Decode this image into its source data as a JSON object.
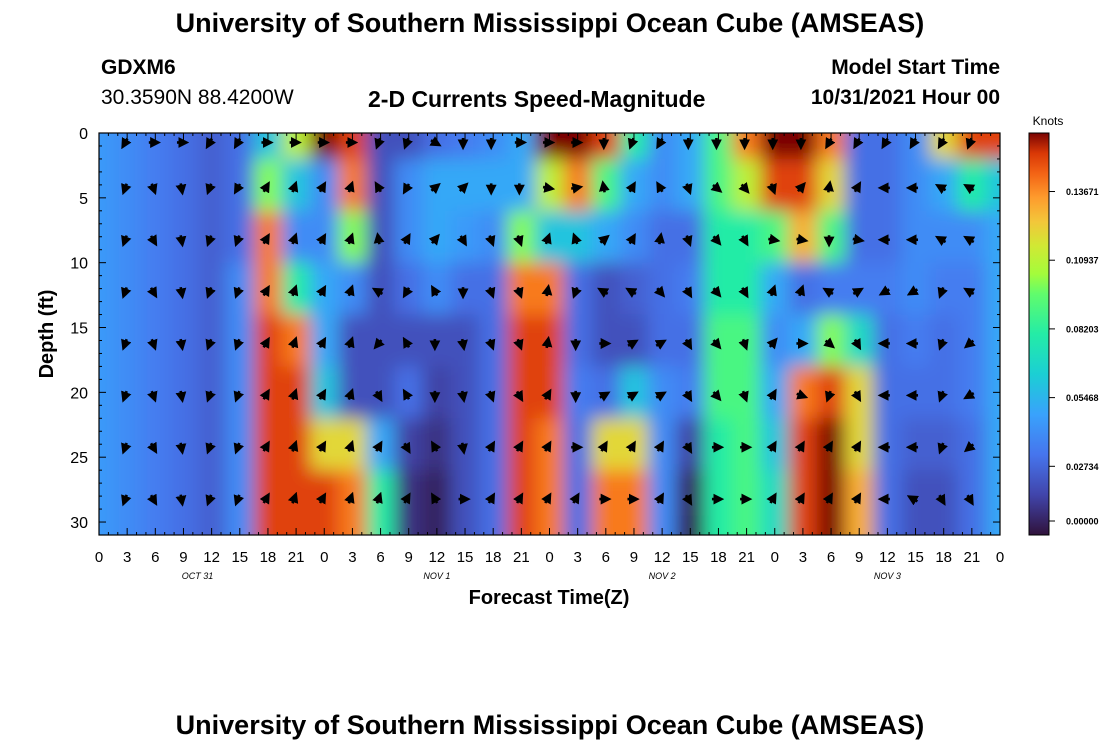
{
  "header": {
    "title": "University of Southern Mississippi Ocean Cube (AMSEAS)",
    "station": "GDXM6",
    "coords": "30.3590N  88.4200W",
    "subtitle": "2-D Currents Speed-Magnitude",
    "model_start_label": "Model Start Time",
    "model_start_value": "10/31/2021 Hour 00"
  },
  "footer": {
    "title": "University of Southern Mississippi Ocean Cube (AMSEAS)"
  },
  "chart_data": {
    "type": "heatmap",
    "title": "2-D Currents Speed-Magnitude",
    "xlabel": "Forecast Time(Z)",
    "ylabel": "Depth (ft)",
    "colorbar_label": "Knots",
    "colorbar_ticks": [
      "0.00000",
      "0.02734",
      "0.05468",
      "0.08203",
      "0.10937",
      "0.13671"
    ],
    "colorbar_values": [
      0.0,
      0.02734,
      0.05468,
      0.08203,
      0.10937,
      0.13671
    ],
    "colorbar_max": 0.16,
    "x_tick_labels": [
      "0",
      "3",
      "6",
      "9",
      "12",
      "15",
      "18",
      "21",
      "0",
      "3",
      "6",
      "9",
      "12",
      "15",
      "18",
      "21",
      "0",
      "3",
      "6",
      "9",
      "12",
      "15",
      "18",
      "21",
      "0",
      "3",
      "6",
      "9",
      "12",
      "15",
      "18",
      "21",
      "0"
    ],
    "xlim_hours": [
      0,
      96
    ],
    "date_labels": [
      {
        "label": "OCT 31",
        "hour": 10.5
      },
      {
        "label": "NOV 1",
        "hour": 36.0
      },
      {
        "label": "NOV 2",
        "hour": 60.0
      },
      {
        "label": "NOV 3",
        "hour": 84.0
      }
    ],
    "y_ticks": [
      0,
      5,
      10,
      15,
      20,
      25,
      30
    ],
    "ylim_ft": [
      0,
      31
    ],
    "depths_ft": [
      0,
      4,
      8,
      12,
      16,
      20,
      24,
      28,
      31
    ],
    "hours": [
      0,
      3,
      6,
      9,
      12,
      15,
      18,
      21,
      24,
      27,
      30,
      33,
      36,
      39,
      42,
      45,
      48,
      51,
      54,
      57,
      60,
      63,
      66,
      69,
      72,
      75,
      78,
      81,
      84,
      87,
      90,
      93,
      96
    ],
    "speed": [
      [
        0.045,
        0.04,
        0.035,
        0.03,
        0.025,
        0.03,
        0.06,
        0.11,
        0.16,
        0.15,
        0.02,
        0.02,
        0.03,
        0.035,
        0.04,
        0.05,
        0.16,
        0.16,
        0.15,
        0.08,
        0.04,
        0.05,
        0.09,
        0.14,
        0.16,
        0.16,
        0.14,
        0.03,
        0.03,
        0.04,
        0.12,
        0.15,
        0.15
      ],
      [
        0.045,
        0.04,
        0.035,
        0.03,
        0.025,
        0.03,
        0.1,
        0.06,
        0.04,
        0.14,
        0.02,
        0.04,
        0.05,
        0.05,
        0.05,
        0.05,
        0.11,
        0.14,
        0.09,
        0.05,
        0.04,
        0.05,
        0.09,
        0.11,
        0.15,
        0.15,
        0.12,
        0.03,
        0.03,
        0.04,
        0.05,
        0.08,
        0.06
      ],
      [
        0.045,
        0.04,
        0.035,
        0.03,
        0.025,
        0.03,
        0.14,
        0.04,
        0.04,
        0.1,
        0.02,
        0.04,
        0.05,
        0.045,
        0.04,
        0.1,
        0.06,
        0.06,
        0.05,
        0.04,
        0.03,
        0.03,
        0.08,
        0.08,
        0.09,
        0.13,
        0.09,
        0.03,
        0.03,
        0.04,
        0.04,
        0.04,
        0.05
      ],
      [
        0.045,
        0.04,
        0.035,
        0.03,
        0.025,
        0.04,
        0.14,
        0.08,
        0.05,
        0.04,
        0.02,
        0.03,
        0.04,
        0.03,
        0.03,
        0.14,
        0.14,
        0.03,
        0.02,
        0.025,
        0.03,
        0.035,
        0.08,
        0.08,
        0.05,
        0.03,
        0.035,
        0.035,
        0.035,
        0.04,
        0.035,
        0.035,
        0.05
      ],
      [
        0.045,
        0.04,
        0.035,
        0.03,
        0.025,
        0.04,
        0.15,
        0.14,
        0.05,
        0.02,
        0.02,
        0.02,
        0.02,
        0.02,
        0.03,
        0.15,
        0.15,
        0.03,
        0.02,
        0.02,
        0.03,
        0.03,
        0.09,
        0.09,
        0.04,
        0.05,
        0.1,
        0.07,
        0.03,
        0.035,
        0.03,
        0.035,
        0.05
      ],
      [
        0.045,
        0.04,
        0.035,
        0.03,
        0.025,
        0.04,
        0.15,
        0.15,
        0.06,
        0.02,
        0.02,
        0.03,
        0.015,
        0.02,
        0.03,
        0.15,
        0.15,
        0.035,
        0.03,
        0.06,
        0.04,
        0.035,
        0.09,
        0.09,
        0.05,
        0.14,
        0.15,
        0.12,
        0.03,
        0.03,
        0.03,
        0.035,
        0.05
      ],
      [
        0.045,
        0.04,
        0.035,
        0.03,
        0.025,
        0.04,
        0.15,
        0.15,
        0.12,
        0.12,
        0.05,
        0.015,
        0.01,
        0.02,
        0.03,
        0.15,
        0.14,
        0.03,
        0.12,
        0.12,
        0.04,
        0.015,
        0.08,
        0.09,
        0.06,
        0.15,
        0.16,
        0.12,
        0.03,
        0.025,
        0.025,
        0.03,
        0.05
      ],
      [
        0.045,
        0.04,
        0.035,
        0.03,
        0.025,
        0.04,
        0.15,
        0.15,
        0.15,
        0.14,
        0.08,
        0.01,
        0.005,
        0.02,
        0.03,
        0.15,
        0.14,
        0.03,
        0.14,
        0.14,
        0.04,
        0.005,
        0.08,
        0.09,
        0.07,
        0.15,
        0.16,
        0.13,
        0.03,
        0.02,
        0.02,
        0.03,
        0.05
      ],
      [
        0.045,
        0.04,
        0.035,
        0.03,
        0.025,
        0.04,
        0.15,
        0.15,
        0.15,
        0.14,
        0.08,
        0.01,
        0.005,
        0.02,
        0.03,
        0.15,
        0.14,
        0.03,
        0.14,
        0.14,
        0.04,
        0.003,
        0.08,
        0.09,
        0.07,
        0.15,
        0.16,
        0.13,
        0.03,
        0.02,
        0.02,
        0.03,
        0.05
      ]
    ],
    "arrow_hours": [
      3,
      6,
      9,
      12,
      15,
      18,
      21,
      24,
      27,
      30,
      33,
      36,
      39,
      42,
      45,
      48,
      51,
      54,
      57,
      60,
      63,
      66,
      69,
      72,
      75,
      78,
      81,
      84,
      87,
      90,
      93
    ],
    "arrow_depths_ft": [
      0.5,
      4,
      8,
      12,
      16,
      20,
      24,
      28
    ],
    "arrow_dirs_deg": [
      [
        210,
        90,
        90,
        210,
        210,
        90,
        90,
        90,
        90,
        200,
        200,
        120,
        180,
        180,
        90,
        90,
        90,
        180,
        200,
        210,
        180,
        180,
        180,
        180,
        180,
        210,
        210,
        210,
        210,
        210,
        200
      ],
      [
        200,
        160,
        170,
        200,
        210,
        30,
        20,
        30,
        20,
        330,
        210,
        50,
        45,
        180,
        180,
        100,
        80,
        350,
        30,
        330,
        160,
        130,
        140,
        160,
        40,
        10,
        30,
        270,
        270,
        300,
        300
      ],
      [
        200,
        150,
        170,
        200,
        200,
        30,
        20,
        30,
        20,
        350,
        30,
        40,
        150,
        160,
        160,
        20,
        340,
        50,
        30,
        10,
        160,
        140,
        150,
        100,
        100,
        180,
        100,
        270,
        270,
        300,
        300
      ],
      [
        200,
        150,
        170,
        200,
        200,
        30,
        20,
        30,
        20,
        300,
        210,
        330,
        180,
        160,
        160,
        10,
        200,
        300,
        300,
        140,
        150,
        140,
        150,
        20,
        20,
        300,
        60,
        240,
        240,
        200,
        300
      ],
      [
        200,
        160,
        170,
        200,
        200,
        30,
        20,
        30,
        20,
        220,
        330,
        180,
        170,
        160,
        160,
        10,
        180,
        90,
        60,
        60,
        150,
        140,
        160,
        40,
        90,
        130,
        150,
        270,
        270,
        200,
        230
      ],
      [
        200,
        160,
        170,
        200,
        200,
        30,
        20,
        30,
        20,
        150,
        330,
        180,
        170,
        160,
        150,
        30,
        180,
        60,
        60,
        60,
        150,
        140,
        160,
        30,
        110,
        200,
        150,
        270,
        270,
        200,
        240
      ],
      [
        200,
        150,
        170,
        200,
        200,
        30,
        20,
        30,
        20,
        30,
        150,
        330,
        170,
        30,
        30,
        30,
        90,
        30,
        30,
        30,
        150,
        90,
        90,
        30,
        30,
        30,
        30,
        270,
        270,
        200,
        230
      ],
      [
        200,
        150,
        170,
        200,
        200,
        30,
        20,
        30,
        20,
        20,
        30,
        330,
        90,
        30,
        30,
        30,
        30,
        90,
        90,
        30,
        150,
        90,
        90,
        30,
        30,
        30,
        30,
        270,
        300,
        150,
        150
      ]
    ]
  }
}
